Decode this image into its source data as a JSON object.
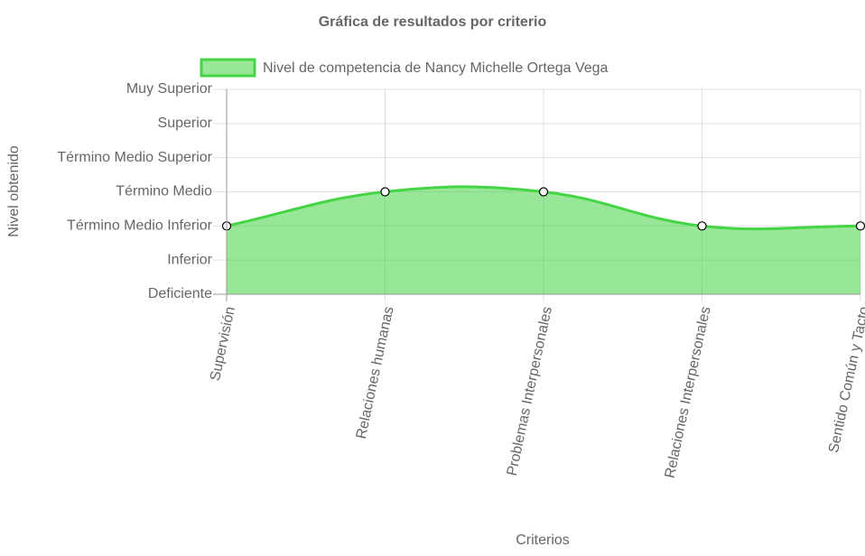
{
  "chart_data": {
    "type": "line",
    "title": "Gráfica de resultados por criterio",
    "x_label": "Criterios",
    "y_label": "Nivel obtenido",
    "categories": [
      "Supervisión",
      "Relaciones humanas",
      "Problemas Interpersonales",
      "Relaciones Interpersonales",
      "Sentido Común y Tacto"
    ],
    "series": [
      {
        "name": "Nivel de competencia de Nancy Michelle Ortega Vega",
        "color": "#44d444",
        "values": [
          2,
          3,
          3,
          2,
          2
        ]
      }
    ],
    "ylim": [
      0,
      6
    ],
    "yticks": [
      {
        "value": 0,
        "label": "Deficiente"
      },
      {
        "value": 1,
        "label": "Inferior"
      },
      {
        "value": 2,
        "label": "Término Medio Inferior"
      },
      {
        "value": 3,
        "label": "Término Medio"
      },
      {
        "value": 4,
        "label": "Término Medio Superior"
      },
      {
        "value": 5,
        "label": "Superior"
      },
      {
        "value": 6,
        "label": "Muy Superior"
      }
    ],
    "grid": true,
    "fill": true,
    "legend": "top"
  }
}
